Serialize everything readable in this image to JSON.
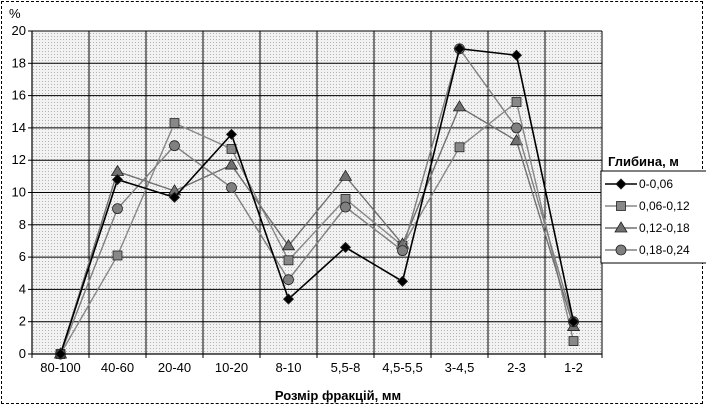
{
  "chart_data": {
    "type": "line",
    "title": "",
    "xlabel": "Розмір фракцій, мм",
    "ylabel": "%",
    "ylim": [
      0,
      20
    ],
    "ytick_step": 2,
    "grid": true,
    "legend_title": "Глибина, м",
    "legend_position": "right",
    "categories": [
      "80-100",
      "40-60",
      "20-40",
      "10-20",
      "8-10",
      "5,5-8",
      "4,5-5,5",
      "3-4,5",
      "2-3",
      "1-2"
    ],
    "series": [
      {
        "name": "0-0,06",
        "marker": "diamond",
        "color": "#000000",
        "values": [
          0,
          10.8,
          9.7,
          13.6,
          3.4,
          6.6,
          4.5,
          18.9,
          18.5,
          2.0
        ]
      },
      {
        "name": "0,06-0,12",
        "marker": "square",
        "color": "#888888",
        "values": [
          0,
          6.1,
          14.3,
          12.7,
          5.8,
          9.6,
          6.7,
          12.8,
          15.6,
          0.8
        ]
      },
      {
        "name": "0,12-0,18",
        "marker": "triangle",
        "color": "#707070",
        "values": [
          0,
          11.3,
          10.1,
          11.7,
          6.7,
          11.0,
          6.8,
          15.3,
          13.2,
          1.7
        ]
      },
      {
        "name": "0,18-0,24",
        "marker": "circle",
        "color": "#808080",
        "values": [
          0,
          9.0,
          12.9,
          10.3,
          4.6,
          9.1,
          6.4,
          18.9,
          14.0,
          2.0
        ]
      }
    ]
  }
}
